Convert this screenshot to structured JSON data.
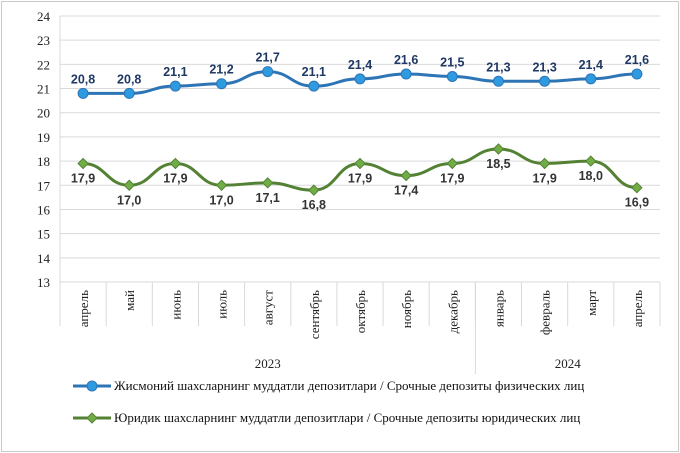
{
  "chart_data": {
    "type": "line",
    "categories": [
      "апрель",
      "май",
      "июнь",
      "июль",
      "август",
      "сентябрь",
      "октябрь",
      "ноябрь",
      "декабрь",
      "январь",
      "февраль",
      "март",
      "апрель"
    ],
    "category_groups": [
      {
        "label": "2023",
        "count": 9
      },
      {
        "label": "2024",
        "count": 4
      }
    ],
    "ylim": [
      13,
      24
    ],
    "yticks": [
      13,
      14,
      15,
      16,
      17,
      18,
      19,
      20,
      21,
      22,
      23,
      24
    ],
    "grid": "horizontal",
    "legend_position": "bottom",
    "series": [
      {
        "name": "Жисмоний шахсларнинг  муддатли  депозитлари  / Срочные депозиты  физических  лиц",
        "color": "#2E75B6",
        "marker_color": "#2E9BE0",
        "label_color": "#1F3864",
        "marker": "circle",
        "label_position": "above",
        "values": [
          20.8,
          20.8,
          21.1,
          21.2,
          21.7,
          21.1,
          21.4,
          21.6,
          21.5,
          21.3,
          21.3,
          21.4,
          21.6
        ],
        "labels": [
          "20,8",
          "20,8",
          "21,1",
          "21,2",
          "21,7",
          "21,1",
          "21,4",
          "21,6",
          "21,5",
          "21,3",
          "21,3",
          "21,4",
          "21,6"
        ]
      },
      {
        "name": "Юридик  шахсларнинг  муддатли  депозитлари  / Срочные депозиты юридических  лиц",
        "color": "#548235",
        "marker_color": "#70AD47",
        "label_color": "#333333",
        "marker": "diamond",
        "label_position": "below",
        "values": [
          17.9,
          17.0,
          17.9,
          17.0,
          17.1,
          16.8,
          17.9,
          17.4,
          17.9,
          18.5,
          17.9,
          18.0,
          16.9
        ],
        "labels": [
          "17,9",
          "17,0",
          "17,9",
          "17,0",
          "17,1",
          "16,8",
          "17,9",
          "17,4",
          "17,9",
          "18,5",
          "17,9",
          "18,0",
          "16,9"
        ]
      }
    ]
  }
}
